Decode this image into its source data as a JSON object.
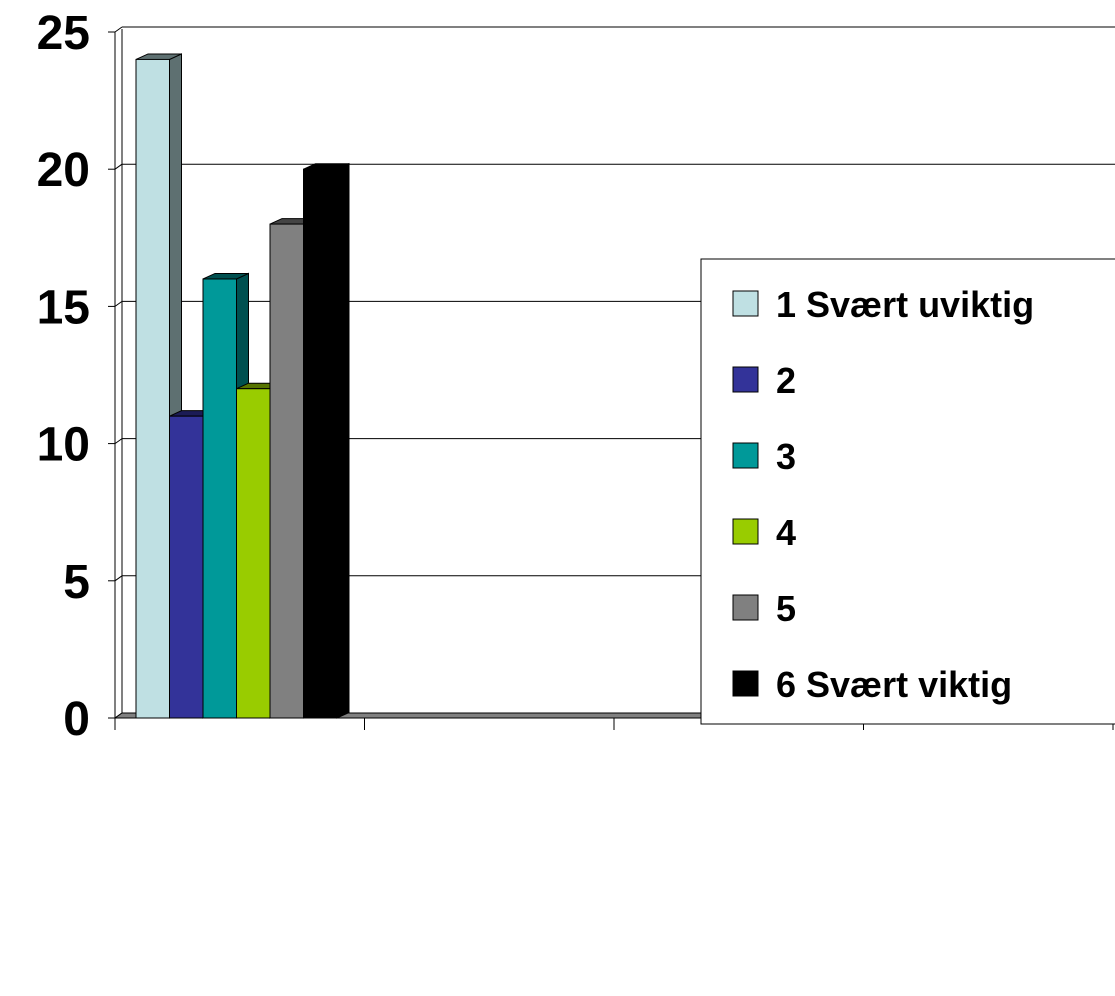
{
  "chart_data": {
    "type": "bar",
    "style": "3d-clustered-column",
    "categories": [
      ""
    ],
    "series": [
      {
        "name": "1 Svært uviktig",
        "values": [
          24
        ],
        "color": "#BFE0E3",
        "side_color": "#5E7071"
      },
      {
        "name": "2",
        "values": [
          11
        ],
        "color": "#333399",
        "side_color": "#1B1B55"
      },
      {
        "name": "3",
        "values": [
          16
        ],
        "color": "#009999",
        "side_color": "#005050"
      },
      {
        "name": "4",
        "values": [
          12
        ],
        "color": "#99CC00",
        "side_color": "#577400"
      },
      {
        "name": "5",
        "values": [
          18
        ],
        "color": "#808080",
        "side_color": "#444444"
      },
      {
        "name": "6 Svært viktig",
        "values": [
          20
        ],
        "color": "#000000",
        "side_color": "#000000"
      }
    ],
    "title": "",
    "xlabel": "",
    "ylabel": "",
    "ylim": [
      0,
      25
    ],
    "yticks": [
      "0",
      "5",
      "10",
      "15",
      "20",
      "25"
    ],
    "x_divisions": 4,
    "grid": true,
    "legend_position": "right"
  }
}
